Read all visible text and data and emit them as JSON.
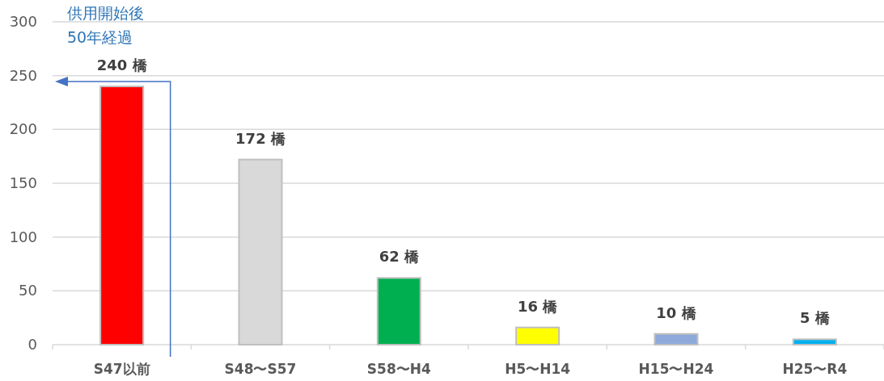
{
  "chart_data": {
    "type": "bar",
    "categories": [
      "S47以前",
      "S48〜S57",
      "S58〜H4",
      "H5〜H14",
      "H15〜H24",
      "H25〜R4"
    ],
    "values": [
      240,
      172,
      62,
      16,
      10,
      5
    ],
    "colors": [
      "#ff0000",
      "#d9d9d9",
      "#00b050",
      "#ffff00",
      "#8eaadb",
      "#00b0f0"
    ],
    "value_labels": [
      "240 橋",
      "172 橋",
      "62 橋",
      "16 橋",
      "10 橋",
      "5 橋"
    ],
    "ylim": [
      0,
      300
    ],
    "yticks": [
      0,
      50,
      100,
      150,
      200,
      250,
      300
    ],
    "grid": "y",
    "annotations": [
      "供用開始後\n50年経過"
    ]
  }
}
